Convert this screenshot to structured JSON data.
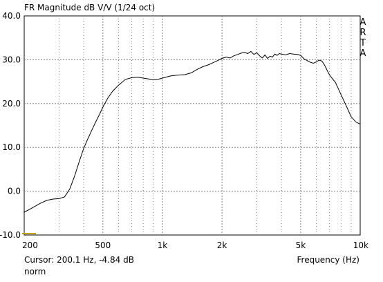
{
  "window": {
    "title": "FR Magnitude dB V/V (1/24 oct)",
    "brand_letters": [
      "A",
      "R",
      "T",
      "A"
    ]
  },
  "status": {
    "cursor": "Cursor: 200.1 Hz, -4.84 dB",
    "mode": "norm",
    "frequency_label": "Frequency (Hz)"
  },
  "colors": {
    "background": "#ffffff",
    "curve": "#000000",
    "grid": "#808080",
    "cursor_marker": "#c8a000"
  },
  "chart_data": {
    "type": "line",
    "title": "FR Magnitude dB V/V (1/24 oct)",
    "xlabel": "Frequency (Hz)",
    "ylabel": "",
    "x_scale": "log",
    "xlim": [
      200,
      10000
    ],
    "ylim": [
      -10,
      40
    ],
    "grid": true,
    "x_ticks": [
      {
        "value": 200,
        "label": "200"
      },
      {
        "value": 500,
        "label": "500"
      },
      {
        "value": 1000,
        "label": "1k"
      },
      {
        "value": 2000,
        "label": "2k"
      },
      {
        "value": 5000,
        "label": "5k"
      },
      {
        "value": 10000,
        "label": "10k"
      }
    ],
    "x_minor_ticks": [
      300,
      400,
      600,
      700,
      800,
      900,
      3000,
      4000,
      6000,
      7000,
      8000,
      9000
    ],
    "y_ticks": [
      {
        "value": 40,
        "label": "40.0"
      },
      {
        "value": 30,
        "label": "30.0"
      },
      {
        "value": 20,
        "label": "20.0"
      },
      {
        "value": 10,
        "label": "10.0"
      },
      {
        "value": 0,
        "label": "0.0"
      },
      {
        "value": -10,
        "label": "-10.0"
      }
    ],
    "series": [
      {
        "x": [
          200,
          220,
          240,
          260,
          280,
          300,
          320,
          340,
          360,
          380,
          400,
          420,
          440,
          460,
          480,
          500,
          530,
          560,
          600,
          650,
          700,
          750,
          800,
          850,
          900,
          950,
          1000,
          1100,
          1200,
          1300,
          1400,
          1500,
          1600,
          1700,
          1800,
          1900,
          2000,
          2100,
          2200,
          2300,
          2400,
          2500,
          2600,
          2700,
          2800,
          2900,
          3000,
          3100,
          3200,
          3300,
          3400,
          3500,
          3600,
          3700,
          3800,
          3900,
          4000,
          4200,
          4400,
          4600,
          4800,
          5000,
          5200,
          5400,
          5600,
          5800,
          6000,
          6200,
          6400,
          6600,
          6800,
          7000,
          7500,
          8000,
          8500,
          9000,
          9500,
          10000
        ],
        "y": [
          -4.8,
          -3.8,
          -2.8,
          -2.1,
          -1.8,
          -1.7,
          -1.3,
          0.5,
          3.5,
          6.8,
          9.8,
          12.0,
          14.0,
          15.8,
          17.5,
          19.2,
          21.3,
          22.8,
          24.2,
          25.5,
          25.9,
          26.0,
          25.8,
          25.6,
          25.4,
          25.5,
          25.8,
          26.3,
          26.5,
          26.6,
          27.0,
          27.8,
          28.4,
          28.8,
          29.3,
          29.8,
          30.3,
          30.6,
          30.4,
          30.9,
          31.2,
          31.5,
          31.7,
          31.4,
          31.9,
          31.2,
          31.6,
          30.9,
          30.4,
          31.1,
          30.3,
          30.8,
          30.6,
          31.3,
          31.0,
          31.4,
          31.3,
          31.1,
          31.4,
          31.3,
          31.2,
          31.0,
          30.2,
          29.8,
          29.4,
          29.2,
          29.5,
          29.9,
          29.7,
          28.8,
          27.6,
          26.5,
          24.8,
          22.0,
          19.5,
          17.0,
          15.8,
          15.3
        ]
      }
    ]
  }
}
